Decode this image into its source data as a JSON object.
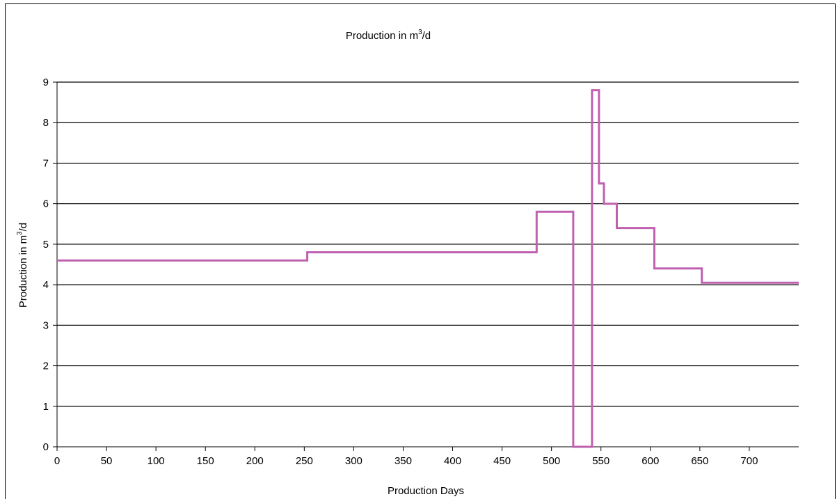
{
  "chart_data": {
    "type": "line",
    "title_main": "Production in m",
    "title_sup": "3",
    "title_end": "/d",
    "xlabel": "Production Days",
    "ylabel_main": "Production in m",
    "ylabel_sup": "3",
    "ylabel_end": "/d",
    "xlim": [
      0,
      750
    ],
    "ylim": [
      0,
      9
    ],
    "x_ticks": [
      0,
      50,
      100,
      150,
      200,
      250,
      300,
      350,
      400,
      450,
      500,
      550,
      600,
      650,
      700
    ],
    "y_ticks": [
      0,
      1,
      2,
      3,
      4,
      5,
      6,
      7,
      8,
      9
    ],
    "grid": "horizontal",
    "line_color": "#c060b0",
    "step": true,
    "series": [
      {
        "points": [
          [
            0,
            4.6
          ],
          [
            253,
            4.6
          ],
          [
            253,
            4.8
          ],
          [
            485,
            4.8
          ],
          [
            485,
            5.8
          ],
          [
            522,
            5.8
          ],
          [
            522,
            0
          ],
          [
            541,
            0
          ],
          [
            541,
            8.8
          ],
          [
            548,
            8.8
          ],
          [
            548,
            6.5
          ],
          [
            553,
            6.5
          ],
          [
            553,
            6.0
          ],
          [
            566,
            6.0
          ],
          [
            566,
            5.4
          ],
          [
            604,
            5.4
          ],
          [
            604,
            4.4
          ],
          [
            652,
            4.4
          ],
          [
            652,
            4.05
          ],
          [
            750,
            4.05
          ]
        ]
      }
    ]
  }
}
